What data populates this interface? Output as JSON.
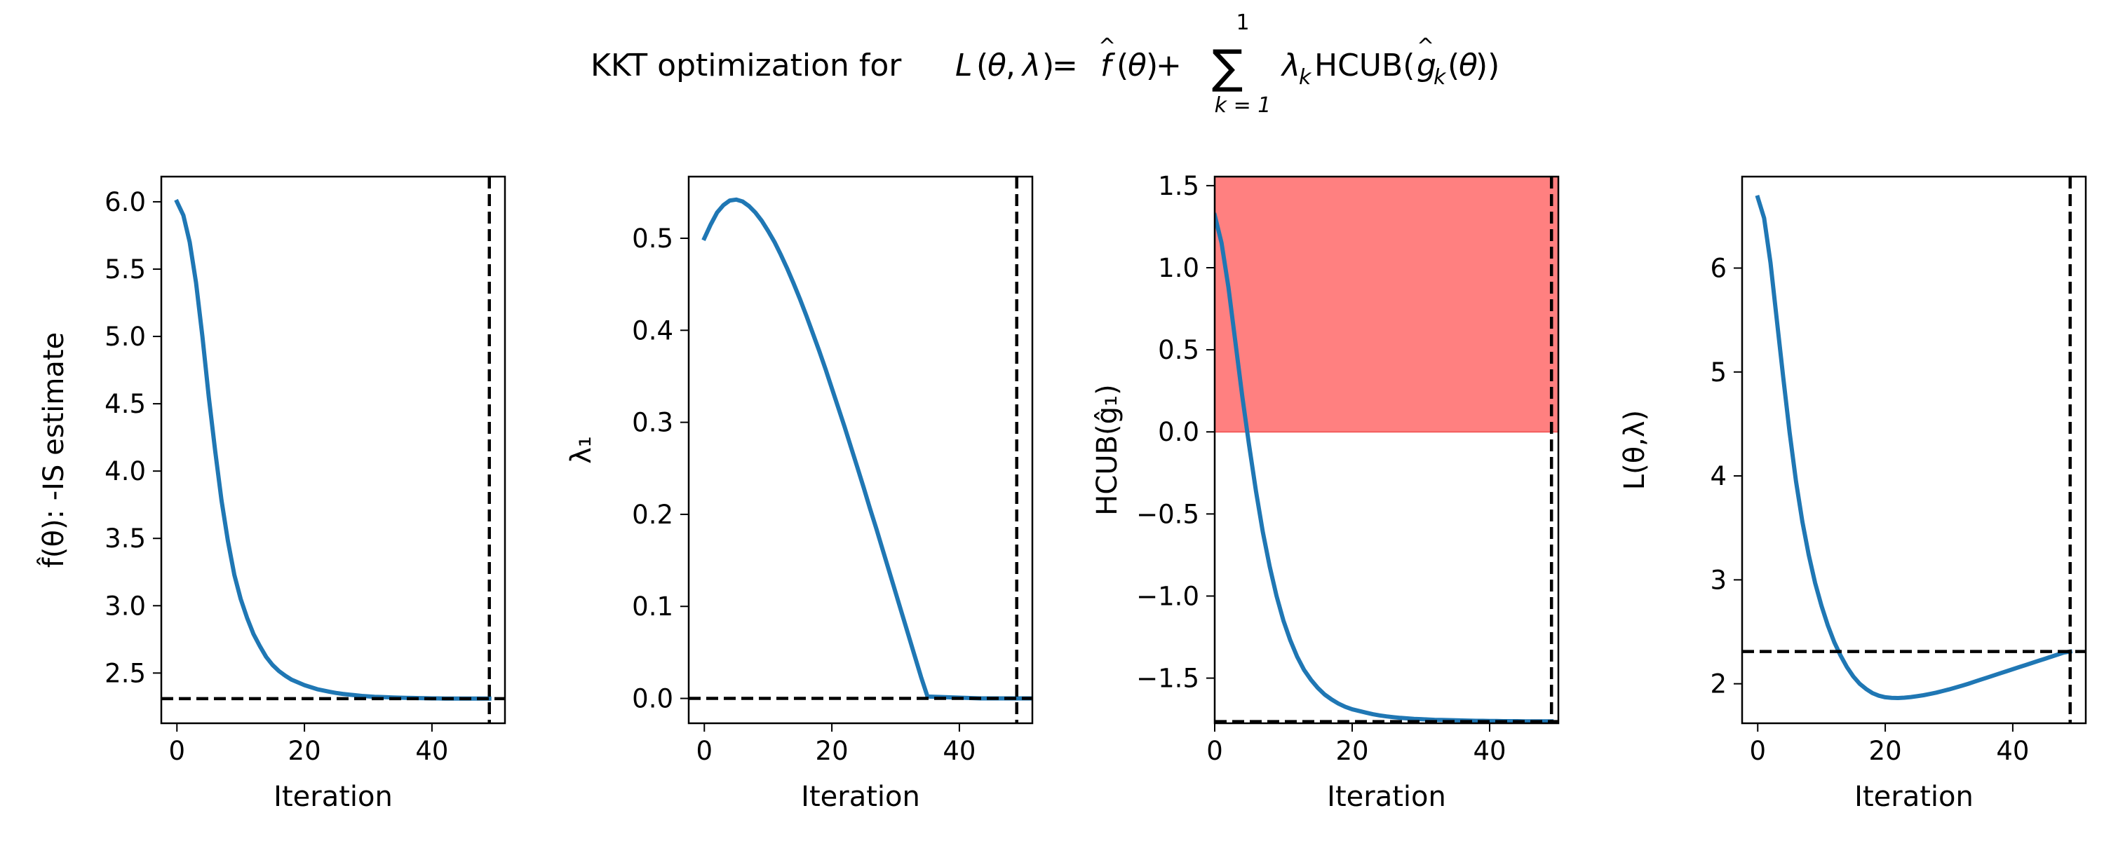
{
  "title": {
    "prefix": "KKT optimization for ",
    "L": "L",
    "paren_open": "(",
    "theta": "θ",
    "comma": ", ",
    "lambda": "λ",
    "paren_close": ")",
    "equals": " = ",
    "f": "f",
    "hat": "^",
    "plus": " + ",
    "sum": "∑",
    "sum_upper": "1",
    "sum_lower": "k = 1",
    "lambda_sub": "k",
    "hcub": "HCUB(",
    "g": "g",
    "g_sub": "k",
    "end": "))"
  },
  "colors": {
    "line": "#1f77b4",
    "reference": "#000000",
    "infeasible_region": "#ff8080"
  },
  "chart_data": [
    {
      "type": "line",
      "xlabel": "Iteration",
      "ylabel": "f̂(θ): -IS estimate",
      "xlim": [
        -2.45,
        51.45
      ],
      "ylim": [
        2.127,
        6.187
      ],
      "xticks": [
        0,
        20,
        40
      ],
      "yticks": [
        2.5,
        3.0,
        3.5,
        4.0,
        4.5,
        5.0,
        5.5,
        6.0
      ],
      "ytick_labels": [
        "2.5",
        "3.0",
        "3.5",
        "4.0",
        "4.5",
        "5.0",
        "5.5",
        "6.0"
      ],
      "x": [
        0,
        1,
        2,
        3,
        4,
        5,
        6,
        7,
        8,
        9,
        10,
        11,
        12,
        13,
        14,
        15,
        16,
        17,
        18,
        19,
        20,
        21,
        22,
        23,
        24,
        25,
        26,
        27,
        28,
        29,
        30,
        31,
        32,
        33,
        34,
        35,
        36,
        37,
        38,
        39,
        40,
        41,
        42,
        43,
        44,
        45,
        46,
        47,
        48,
        49
      ],
      "y": [
        6.0,
        5.9,
        5.7,
        5.4,
        5.0,
        4.55,
        4.15,
        3.78,
        3.48,
        3.23,
        3.05,
        2.91,
        2.79,
        2.7,
        2.62,
        2.56,
        2.515,
        2.48,
        2.45,
        2.43,
        2.41,
        2.395,
        2.38,
        2.37,
        2.36,
        2.352,
        2.345,
        2.34,
        2.335,
        2.33,
        2.327,
        2.324,
        2.322,
        2.32,
        2.318,
        2.317,
        2.316,
        2.315,
        2.314,
        2.313,
        2.312,
        2.312,
        2.311,
        2.311,
        2.31,
        2.31,
        2.31,
        2.31,
        2.31,
        2.31
      ],
      "hline": 2.31,
      "vline": 49
    },
    {
      "type": "line",
      "xlabel": "Iteration",
      "ylabel": "λ₁",
      "xlim": [
        -2.45,
        51.45
      ],
      "ylim": [
        -0.027,
        0.567
      ],
      "xticks": [
        0,
        20,
        40
      ],
      "yticks": [
        0.0,
        0.1,
        0.2,
        0.3,
        0.4,
        0.5
      ],
      "ytick_labels": [
        "0.0",
        "0.1",
        "0.2",
        "0.3",
        "0.4",
        "0.5"
      ],
      "x": [
        0,
        1,
        2,
        3,
        4,
        5,
        6,
        7,
        8,
        9,
        10,
        11,
        12,
        13,
        14,
        15,
        16,
        17,
        18,
        19,
        20,
        21,
        22,
        23,
        24,
        25,
        26,
        27,
        28,
        29,
        30,
        31,
        32,
        33,
        34,
        35,
        36,
        37,
        38,
        39,
        40,
        41,
        42,
        43,
        44,
        45,
        46,
        47,
        48,
        49
      ],
      "y": [
        0.5,
        0.515,
        0.528,
        0.536,
        0.541,
        0.542,
        0.54,
        0.535,
        0.528,
        0.519,
        0.508,
        0.496,
        0.482,
        0.467,
        0.451,
        0.434,
        0.416,
        0.397,
        0.378,
        0.358,
        0.337,
        0.316,
        0.295,
        0.273,
        0.251,
        0.229,
        0.206,
        0.184,
        0.161,
        0.138,
        0.115,
        0.092,
        0.069,
        0.046,
        0.023,
        0.002,
        0.0,
        0.0,
        0.0,
        0.0,
        0.0,
        0.0,
        0.0,
        0.0,
        0.0,
        0.0,
        0.0,
        0.0,
        0.0,
        0.0
      ],
      "x_shift_after_zero": 7.4,
      "hline": 0.0,
      "vline": 49
    },
    {
      "type": "line",
      "xlabel": "Iteration",
      "ylabel": "HCUB(ĝ₁)",
      "xlim": [
        0,
        50
      ],
      "ylim": [
        -1.775,
        1.555
      ],
      "xticks": [
        0,
        20,
        40
      ],
      "yticks": [
        -1.5,
        -1.0,
        -0.5,
        0.0,
        0.5,
        1.0,
        1.5
      ],
      "ytick_labels": [
        "−1.5",
        "−1.0",
        "−0.5",
        "0.0",
        "0.5",
        "1.0",
        "1.5"
      ],
      "x": [
        0,
        1,
        2,
        3,
        4,
        5,
        6,
        7,
        8,
        9,
        10,
        11,
        12,
        13,
        14,
        15,
        16,
        17,
        18,
        19,
        20,
        21,
        22,
        23,
        24,
        25,
        26,
        27,
        28,
        29,
        30,
        31,
        32,
        33,
        34,
        35,
        36,
        37,
        38,
        39,
        40,
        41,
        42,
        43,
        44,
        45,
        46,
        47,
        48,
        49
      ],
      "y": [
        1.32,
        1.15,
        0.88,
        0.55,
        0.22,
        -0.08,
        -0.36,
        -0.61,
        -0.82,
        -1.0,
        -1.15,
        -1.27,
        -1.37,
        -1.45,
        -1.51,
        -1.56,
        -1.6,
        -1.63,
        -1.655,
        -1.675,
        -1.69,
        -1.7,
        -1.71,
        -1.72,
        -1.727,
        -1.733,
        -1.738,
        -1.742,
        -1.745,
        -1.748,
        -1.75,
        -1.752,
        -1.754,
        -1.755,
        -1.756,
        -1.757,
        -1.758,
        -1.759,
        -1.76,
        -1.76,
        -1.761,
        -1.761,
        -1.762,
        -1.762,
        -1.762,
        -1.763,
        -1.763,
        -1.763,
        -1.763,
        -1.763
      ],
      "shaded_region": [
        0.0,
        1.555
      ],
      "hline": -1.765,
      "vline": 49
    },
    {
      "type": "line",
      "xlabel": "Iteration",
      "ylabel": "L(θ,λ)",
      "xlim": [
        -2.45,
        51.45
      ],
      "ylim": [
        1.62,
        6.88
      ],
      "xticks": [
        0,
        20,
        40
      ],
      "yticks": [
        2,
        3,
        4,
        5,
        6
      ],
      "ytick_labels": [
        "2",
        "3",
        "4",
        "5",
        "6"
      ],
      "x": [
        0,
        1,
        2,
        3,
        4,
        5,
        6,
        7,
        8,
        9,
        10,
        11,
        12,
        13,
        14,
        15,
        16,
        17,
        18,
        19,
        20,
        21,
        22,
        23,
        24,
        25,
        26,
        27,
        28,
        29,
        30,
        31,
        32,
        33,
        34,
        35,
        36,
        37,
        38,
        39,
        40,
        41,
        42,
        43,
        44,
        45,
        46,
        47,
        48,
        49
      ],
      "y": [
        6.68,
        6.48,
        6.05,
        5.5,
        4.95,
        4.42,
        3.95,
        3.56,
        3.24,
        2.97,
        2.75,
        2.56,
        2.4,
        2.27,
        2.16,
        2.07,
        2.0,
        1.95,
        1.91,
        1.885,
        1.87,
        1.865,
        1.863,
        1.866,
        1.872,
        1.88,
        1.89,
        1.902,
        1.915,
        1.93,
        1.946,
        1.963,
        1.981,
        2.0,
        2.02,
        2.04,
        2.06,
        2.08,
        2.1,
        2.12,
        2.14,
        2.16,
        2.18,
        2.2,
        2.22,
        2.24,
        2.26,
        2.28,
        2.3,
        2.31
      ],
      "hline": 2.31,
      "vline": 49
    }
  ]
}
